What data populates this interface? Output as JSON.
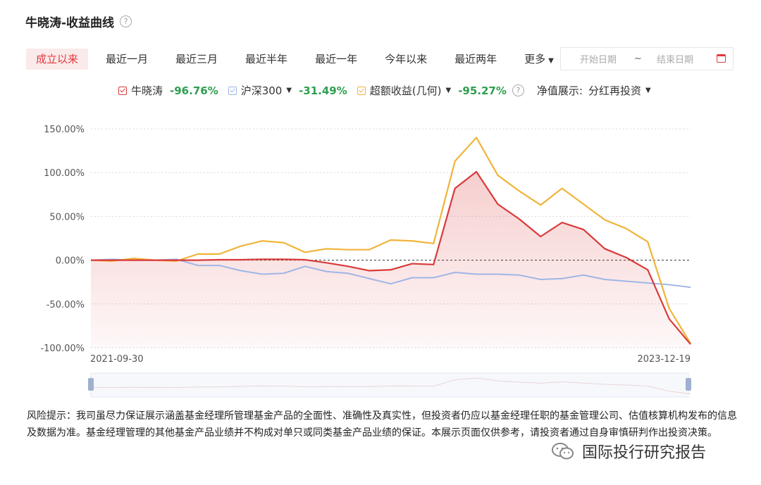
{
  "title": "牛晓涛-收益曲线",
  "help_glyph": "?",
  "tabs": [
    {
      "label": "成立以来",
      "active": true
    },
    {
      "label": "最近一月"
    },
    {
      "label": "最近三月"
    },
    {
      "label": "最近半年"
    },
    {
      "label": "最近一年"
    },
    {
      "label": "今年以来"
    },
    {
      "label": "最近两年"
    },
    {
      "label": "更多",
      "dropdown": true
    }
  ],
  "date_range": {
    "start_placeholder": "开始日期",
    "separator": "~",
    "end_placeholder": "结束日期",
    "icon": "calendar-icon"
  },
  "legend": {
    "items": [
      {
        "name": "牛晓涛",
        "value": "-96.76%",
        "color": "#d93a3a",
        "dropdown": false
      },
      {
        "name": "沪深300",
        "value": "-31.49%",
        "color": "#9fb6e6",
        "dropdown": true
      },
      {
        "name": "超额收益(几何)",
        "value": "-95.27%",
        "color": "#f0b43a",
        "dropdown": true
      }
    ],
    "nav_label": "净值展示:",
    "nav_value": "分红再投资"
  },
  "chart_data": {
    "type": "line",
    "x_start": "2021-09-30",
    "x_end": "2023-12-19",
    "ylim": [
      -100,
      150
    ],
    "yticks": [
      "150.00%",
      "100.00%",
      "50.00%",
      "0.00%",
      "-50.00%",
      "-100.00%"
    ],
    "series": [
      {
        "name": "牛晓涛",
        "color": "#d93a3a",
        "area": true,
        "values": [
          0,
          0,
          0,
          0,
          0,
          0,
          0.5,
          0.5,
          1,
          1,
          0.5,
          -3,
          -7,
          -12,
          -11,
          -4,
          -5,
          82,
          101,
          64,
          47,
          27,
          43,
          35,
          13,
          3,
          -11,
          -67,
          -96
        ]
      },
      {
        "name": "沪深300",
        "color": "#9fb6e6",
        "values": [
          0,
          1,
          0,
          0,
          1,
          -6,
          -6,
          -12,
          -16,
          -15,
          -7,
          -13,
          -15,
          -21,
          -27,
          -20,
          -20,
          -14,
          -16,
          -16,
          -17,
          -22,
          -21,
          -17,
          -22,
          -24,
          -26,
          -28,
          -31
        ]
      },
      {
        "name": "超额收益(几何)",
        "color": "#f0b43a",
        "values": [
          0,
          -1,
          2,
          0,
          -1,
          7,
          7,
          16,
          22,
          20,
          9,
          13,
          12,
          12,
          23,
          22,
          19,
          113,
          140,
          97,
          79,
          63,
          82,
          64,
          46,
          36,
          21,
          -55,
          -95
        ]
      }
    ]
  },
  "risk_text": "风险提示：我司虽尽力保证展示涵盖基金经理所管理基金产品的全面性、准确性及真实性，但投资者仍应以基金经理任职的基金管理公司、估值核算机构发布的信息及数据为准。基金经理管理的其他基金产品业绩并不构成对单只或同类基金产品业绩的保证。本展示页面仅供参考，请投资者通过自身审慎研判作出投资决策。",
  "watermark_text": "国际投行研究报告"
}
